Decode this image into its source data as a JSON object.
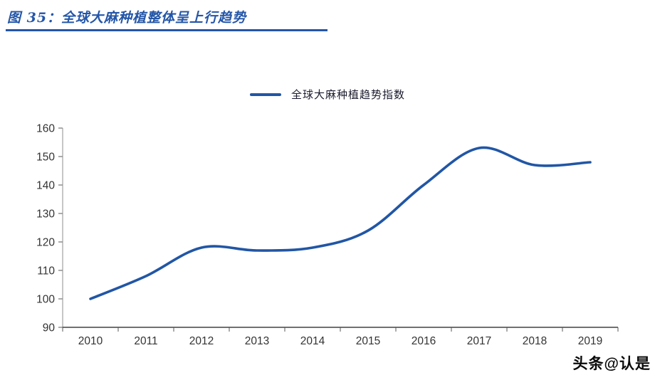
{
  "header": {
    "title": "图 35：全球大麻种植整体呈上行趋势",
    "accent_color": "#2456a8"
  },
  "watermark": "头条@认是",
  "chart_data": {
    "type": "line",
    "title": "图 35：全球大麻种植整体呈上行趋势",
    "legend_position": "top",
    "categories": [
      "2010",
      "2011",
      "2012",
      "2013",
      "2014",
      "2015",
      "2016",
      "2017",
      "2018",
      "2019"
    ],
    "series": [
      {
        "name": "全球大麻种植趋势指数",
        "values": [
          100,
          108,
          118,
          117,
          118,
          124,
          140,
          153,
          147,
          148
        ],
        "color": "#2156a5"
      }
    ],
    "xlabel": "",
    "ylabel": "",
    "ylim": [
      90,
      160
    ],
    "ytick_step": 10,
    "grid": false,
    "smooth": true
  }
}
